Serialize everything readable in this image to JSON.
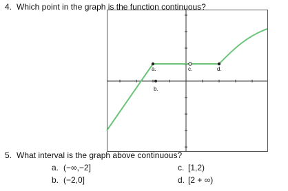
{
  "questions": [
    {
      "number": "4.",
      "text": "Which point in the graph is the function continuous?",
      "graph": {
        "point_labels": [
          "a.",
          "b.",
          "c.",
          "d."
        ]
      }
    },
    {
      "number": "5.",
      "text": "What interval is the graph above continuous?",
      "options": [
        {
          "letter": "a.",
          "text": "(−∞,−2]"
        },
        {
          "letter": "b.",
          "text": "(−2,0]"
        },
        {
          "letter": "c.",
          "text": "[1,2)"
        },
        {
          "letter": "d.",
          "text": "[2 + ∞)"
        }
      ]
    }
  ]
}
